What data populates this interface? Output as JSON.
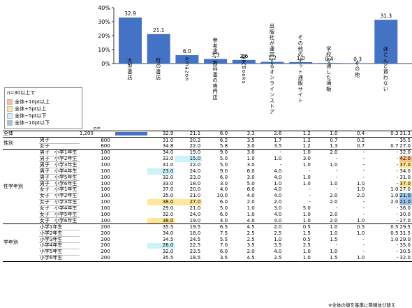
{
  "chart_data": {
    "type": "bar",
    "ylim": [
      0,
      40
    ],
    "yticks": [
      "0%",
      "10%",
      "20%",
      "30%",
      "40%"
    ],
    "grid": false,
    "categories": [
      "大型書店",
      "町の書店",
      "Amazon",
      "参考書・教科書の専門店",
      "楽天Books",
      "出版社が運営するオンラインストア",
      "その他のネット通販サイト",
      "学校を通した通販",
      "その他",
      "ほとんど買わない"
    ],
    "values": [
      32.9,
      21.1,
      6.0,
      3.3,
      2.6,
      1.2,
      1.0,
      0.4,
      0.3,
      31.3
    ],
    "value_labels": [
      "32.9",
      "21.1",
      "6.0",
      "3.3",
      "2.6",
      "1.2",
      "1.0",
      "0.4",
      "0.3",
      "31.3"
    ],
    "bar_color": "#4472c4"
  },
  "legend": {
    "title": "n=30以上で",
    "items": [
      {
        "label": "全体+10pt以上",
        "color": "#fac090"
      },
      {
        "label": "全体+5pt以上",
        "color": "#ffe699"
      },
      {
        "label": "全体−5pt以下",
        "color": "#ccf2fa"
      },
      {
        "label": "全体−10pt以下",
        "color": "#9dc3e6"
      }
    ]
  },
  "table": {
    "n_header": "n=",
    "total": {
      "label": "全体",
      "n": "1,200",
      "values": [
        "32.9",
        "21.1",
        "6.0",
        "3.3",
        "2.6",
        "1.2",
        "1.0",
        "0.4",
        "0.3",
        "31.3"
      ]
    },
    "groups": [
      {
        "label": "性別",
        "rows": [
          {
            "label": "男子",
            "n": "600",
            "values": [
              "31.0",
              "20.2",
              "6.2",
              "3.5",
              "1.7",
              "1.2",
              "0.7",
              "0.2",
              "-",
              "35.5"
            ]
          },
          {
            "label": "女子",
            "n": "600",
            "values": [
              "34.8",
              "22.0",
              "5.8",
              "3.0",
              "3.5",
              "1.2",
              "1.3",
              "0.7",
              "0.7",
              "27.0"
            ]
          }
        ]
      },
      {
        "label": "性学年別",
        "rows": [
          {
            "label": "男子　小学1年生",
            "n": "100",
            "values": [
              "34.0",
              "19.0",
              "9.0",
              "3.0",
              "-",
              "1.0",
              "2.0",
              "-",
              "-",
              "32.0"
            ]
          },
          {
            "label": "男子　小学2年生",
            "n": "100",
            "values": [
              "33.0",
              "15.0",
              "5.0",
              "1.0",
              "1.0",
              "3.0",
              "-",
              "-",
              "-",
              "42.0"
            ],
            "hl": {
              "1": "lo1",
              "9": "hi1"
            }
          },
          {
            "label": "男子　小学3年生",
            "n": "100",
            "values": [
              "31.0",
              "22.0",
              "5.0",
              "3.0",
              "-",
              "1.0",
              "1.0",
              "-",
              "-",
              "37.0"
            ],
            "hl": {
              "9": "hi2"
            }
          },
          {
            "label": "男子　小学4年生",
            "n": "100",
            "values": [
              "23.0",
              "24.0",
              "9.0",
              "6.0",
              "4.0",
              "-",
              "-",
              "-",
              "-",
              "34.0"
            ],
            "hl": {
              "0": "lo1"
            }
          },
          {
            "label": "男子　小学5年生",
            "n": "100",
            "values": [
              "32.0",
              "23.0",
              "6.0",
              "3.0",
              "4.0",
              "1.0",
              "-",
              "-",
              "-",
              "31.0"
            ]
          },
          {
            "label": "男子　小学6年生",
            "n": "100",
            "values": [
              "33.0",
              "18.0",
              "3.0",
              "5.0",
              "1.0",
              "1.0",
              "1.0",
              "1.0",
              "-",
              "37.0"
            ],
            "hl": {
              "9": "hi2"
            }
          },
          {
            "label": "女子　小学1年生",
            "n": "100",
            "values": [
              "37.0",
              "20.0",
              "4.0",
              "6.0",
              "4.0",
              "-",
              "-",
              "1.0",
              "1.0",
              "27.0"
            ]
          },
          {
            "label": "女子　小学2年生",
            "n": "100",
            "values": [
              "35.0",
              "21.0",
              "10.0",
              "4.0",
              "4.0",
              "-",
              "2.0",
              "2.0",
              "1.0",
              "21.0"
            ],
            "hl": {
              "9": "lo2"
            }
          },
          {
            "label": "女子　小学3年生",
            "n": "100",
            "values": [
              "38.0",
              "27.0",
              "6.0",
              "2.0",
              "2.0",
              "-",
              "2.0",
              "-",
              "2.0",
              "21.0"
            ],
            "hl": {
              "0": "hi2",
              "1": "hi2",
              "9": "lo2"
            }
          },
          {
            "label": "女子　小学4年生",
            "n": "100",
            "values": [
              "29.0",
              "21.0",
              "5.0",
              "1.0",
              "3.0",
              "5.0",
              "-",
              "-",
              "-",
              "36.0"
            ]
          },
          {
            "label": "女子　小学5年生",
            "n": "100",
            "values": [
              "32.0",
              "24.0",
              "6.0",
              "1.0",
              "4.0",
              "1.0",
              "2.0",
              "-",
              "-",
              "30.0"
            ]
          },
          {
            "label": "女子　小学6年生",
            "n": "100",
            "values": [
              "38.0",
              "19.0",
              "4.0",
              "4.0",
              "4.0",
              "1.0",
              "2.0",
              "1.0",
              "-",
              "27.0"
            ],
            "hl": {
              "0": "hi2"
            }
          }
        ]
      },
      {
        "label": "学年別",
        "rows": [
          {
            "label": "小学1年生",
            "n": "200",
            "values": [
              "35.5",
              "19.5",
              "6.5",
              "4.5",
              "2.0",
              "0.5",
              "1.0",
              "0.5",
              "0.5",
              "29.5"
            ]
          },
          {
            "label": "小学2年生",
            "n": "200",
            "values": [
              "34.0",
              "18.0",
              "7.5",
              "2.5",
              "2.5",
              "1.5",
              "1.0",
              "1.0",
              "0.5",
              "31.5"
            ]
          },
          {
            "label": "小学3年生",
            "n": "200",
            "values": [
              "34.5",
              "24.5",
              "5.5",
              "2.5",
              "1.0",
              "0.5",
              "1.5",
              "-",
              "1.0",
              "29.0"
            ]
          },
          {
            "label": "小学4年生",
            "n": "200",
            "values": [
              "26.0",
              "22.5",
              "7.0",
              "3.5",
              "3.5",
              "2.5",
              "-",
              "-",
              "-",
              "35.0"
            ],
            "hl": {
              "0": "lo1"
            }
          },
          {
            "label": "小学5年生",
            "n": "200",
            "values": [
              "32.0",
              "23.5",
              "6.0",
              "2.0",
              "4.0",
              "1.0",
              "1.0",
              "-",
              "-",
              "30.5"
            ]
          },
          {
            "label": "小学6年生",
            "n": "200",
            "values": [
              "35.5",
              "18.5",
              "3.5",
              "4.5",
              "2.5",
              "1.0",
              "1.5",
              "1.0",
              "-",
              "32.0"
            ]
          }
        ]
      }
    ]
  },
  "footnote": "※全体の値を基準に降順並び替え"
}
